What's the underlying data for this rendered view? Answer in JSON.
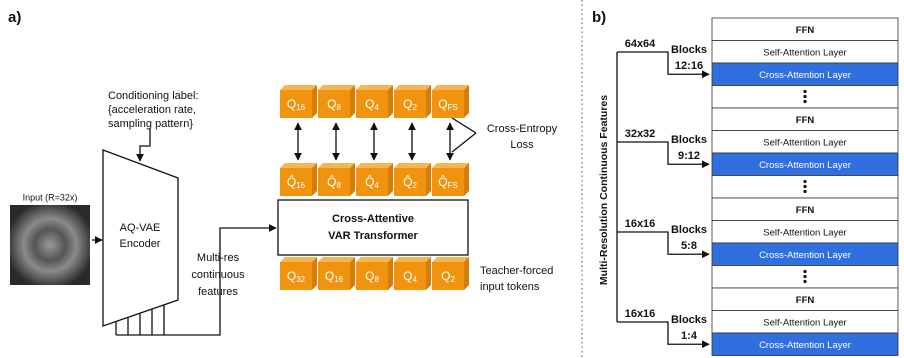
{
  "panel_a": {
    "label": "a)",
    "input_label": "Input (R=32x)",
    "conditioning_label": [
      "Conditioning label:",
      "{acceleration rate,",
      "sampling pattern}"
    ],
    "encoder": [
      "AQ-VAE",
      "Encoder"
    ],
    "features_label": [
      "Multi-res",
      "continuous",
      "features"
    ],
    "transformer": [
      "Cross-Attentive",
      "VAR Transformer"
    ],
    "target_tokens": [
      {
        "base": "Q",
        "sub": "16"
      },
      {
        "base": "Q",
        "sub": "8"
      },
      {
        "base": "Q",
        "sub": "4"
      },
      {
        "base": "Q",
        "sub": "2"
      },
      {
        "base": "Q",
        "sub": "FS"
      }
    ],
    "predicted_tokens": [
      {
        "base": "Q̂",
        "sub": "16"
      },
      {
        "base": "Q̂",
        "sub": "8"
      },
      {
        "base": "Q̂",
        "sub": "4"
      },
      {
        "base": "Q̂",
        "sub": "2"
      },
      {
        "base": "Q̂",
        "sub": "FS"
      }
    ],
    "input_tokens": [
      {
        "base": "Q",
        "sub": "32"
      },
      {
        "base": "Q",
        "sub": "16"
      },
      {
        "base": "Q",
        "sub": "8"
      },
      {
        "base": "Q",
        "sub": "4"
      },
      {
        "base": "Q",
        "sub": "2"
      }
    ],
    "loss_label": [
      "Cross-Entropy",
      "Loss"
    ],
    "input_tokens_label": [
      "Teacher-forced",
      "input tokens"
    ]
  },
  "panel_b": {
    "label": "b)",
    "axis_label": "Multi-Resolution Continuous Features",
    "groups": [
      {
        "resolution": "64x64",
        "blocks": [
          "Blocks",
          "12:16"
        ],
        "layers": [
          "FFN",
          "Self-Attention Layer",
          "Cross-Attention Layer"
        ]
      },
      {
        "resolution": "32x32",
        "blocks": [
          "Blocks",
          "9:12"
        ],
        "layers": [
          "FFN",
          "Self-Attention Layer",
          "Cross-Attention Layer"
        ]
      },
      {
        "resolution": "16x16",
        "blocks": [
          "Blocks",
          "5:8"
        ],
        "layers": [
          "FFN",
          "Self-Attention Layer",
          "Cross-Attention Layer"
        ]
      },
      {
        "resolution": "16x16",
        "blocks": [
          "Blocks",
          "1:4"
        ],
        "layers": [
          "FFN",
          "Self-Attention Layer",
          "Cross-Attention Layer"
        ]
      }
    ]
  }
}
